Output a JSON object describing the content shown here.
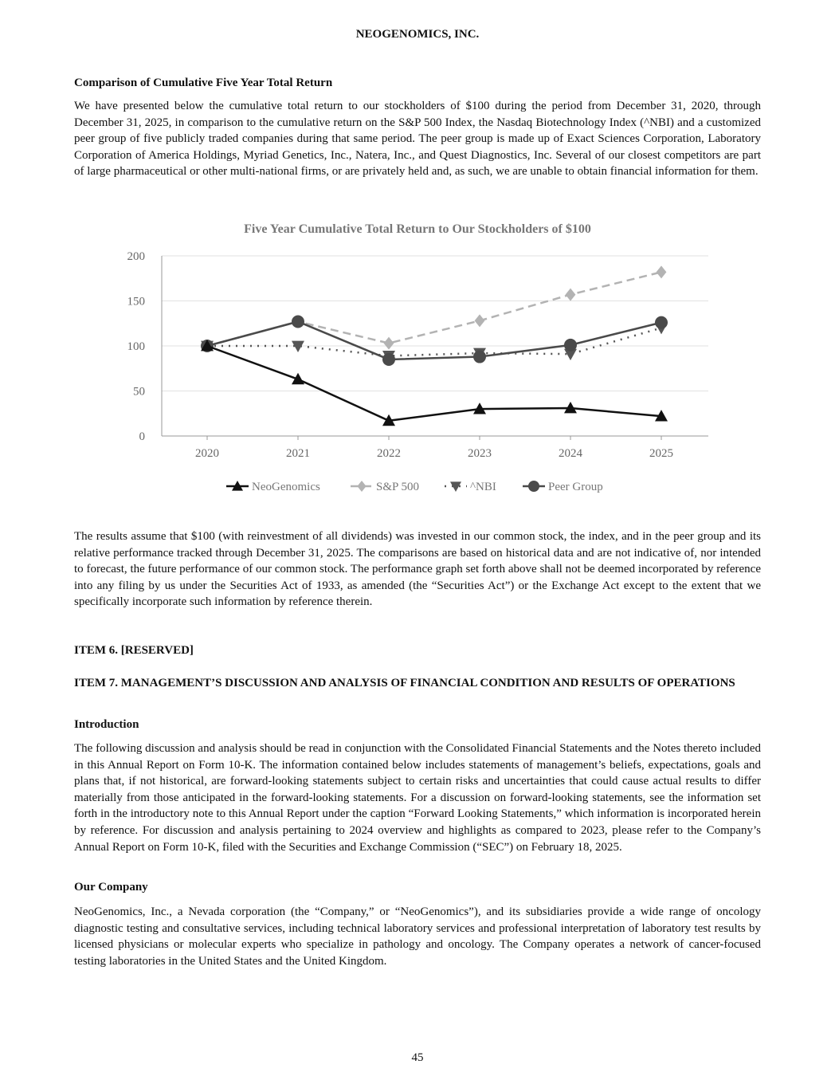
{
  "header": "NEOGENOMICS, INC.",
  "section1": {
    "title": "Comparison of Cumulative Five Year Total Return",
    "para": "We have presented below the cumulative total return to our stockholders of $100 during the period from December 31, 2020, through December 31, 2025, in comparison to the cumulative return on the S&P 500 Index, the Nasdaq Biotechnology Index (^NBI) and a customized peer group of five publicly traded companies during that same period. The peer group is made up of Exact Sciences Corporation, Laboratory Corporation of America Holdings, Myriad Genetics, Inc., Natera, Inc., and Quest Diagnostics, Inc. Several of our closest competitors are part of large pharmaceutical or other multi-national firms, or are privately held and, as such, we are unable to obtain financial information for them."
  },
  "chart_data": {
    "type": "line",
    "title": "Five Year Cumulative Total Return to Our Stockholders of $100",
    "categories": [
      "2020",
      "2021",
      "2022",
      "2023",
      "2024",
      "2025"
    ],
    "ylim": [
      0,
      200
    ],
    "yticks": [
      "0",
      "50",
      "100",
      "150",
      "200"
    ],
    "grid": true,
    "legend_position": "bottom",
    "series": [
      {
        "name": "NeoGenomics",
        "values": [
          100,
          63,
          17,
          30,
          31,
          22
        ],
        "color": "#111111",
        "marker": "triangle-up",
        "dash": "solid"
      },
      {
        "name": "S&P 500",
        "values": [
          100,
          127,
          103,
          128,
          157,
          182
        ],
        "color": "#b3b3b3",
        "marker": "diamond",
        "dash": "dashed"
      },
      {
        "name": "^NBI",
        "values": [
          100,
          100,
          89,
          92,
          91,
          120
        ],
        "color": "#555555",
        "marker": "triangle-down",
        "dash": "dotted"
      },
      {
        "name": "Peer Group",
        "values": [
          100,
          127,
          85,
          88,
          101,
          126
        ],
        "color": "#4a4a4a",
        "marker": "circle",
        "dash": "solid"
      }
    ]
  },
  "para2": "The results assume that $100 (with reinvestment of all dividends) was invested in our common stock, the index, and in the peer group and its relative performance tracked through December 31, 2025. The comparisons are based on historical data and are not indicative of, nor intended to forecast, the future performance of our common stock. The performance graph set forth above shall not be deemed incorporated by reference into any filing by us under the Securities Act of 1933, as amended (the “Securities Act”) or the Exchange Act except to the extent that we specifically incorporate such information by reference therein.",
  "item6": "ITEM 6. [RESERVED]",
  "item7": "ITEM 7. MANAGEMENT’S DISCUSSION AND ANALYSIS OF FINANCIAL CONDITION AND RESULTS OF OPERATIONS",
  "intro": {
    "title": "Introduction",
    "para": "The following discussion and analysis should be read in conjunction with the Consolidated Financial Statements and the Notes thereto included in this Annual Report on Form 10-K. The information contained below includes statements of management’s beliefs, expectations, goals and plans that, if not historical, are forward-looking statements subject to certain risks and uncertainties that could cause actual results to differ materially from those anticipated in the forward-looking statements. For a discussion on forward-looking statements, see the information set forth in the introductory note to this Annual Report under the caption “Forward Looking Statements,” which information is incorporated herein by reference. For discussion and analysis pertaining to 2024 overview and highlights as compared to 2023, please refer to the Company’s Annual Report on Form 10-K, filed with the Securities and Exchange Commission (“SEC”) on February 18, 2025."
  },
  "company": {
    "title": "Our Company",
    "para": "NeoGenomics, Inc., a Nevada corporation (the “Company,” or “NeoGenomics”), and its subsidiaries provide a wide range of oncology diagnostic testing and consultative services, including technical laboratory services and professional interpretation of laboratory test results by licensed physicians or molecular experts who specialize in pathology and oncology. The Company operates a network of cancer-focused testing laboratories in the United States and the United Kingdom."
  },
  "page_number": "45"
}
